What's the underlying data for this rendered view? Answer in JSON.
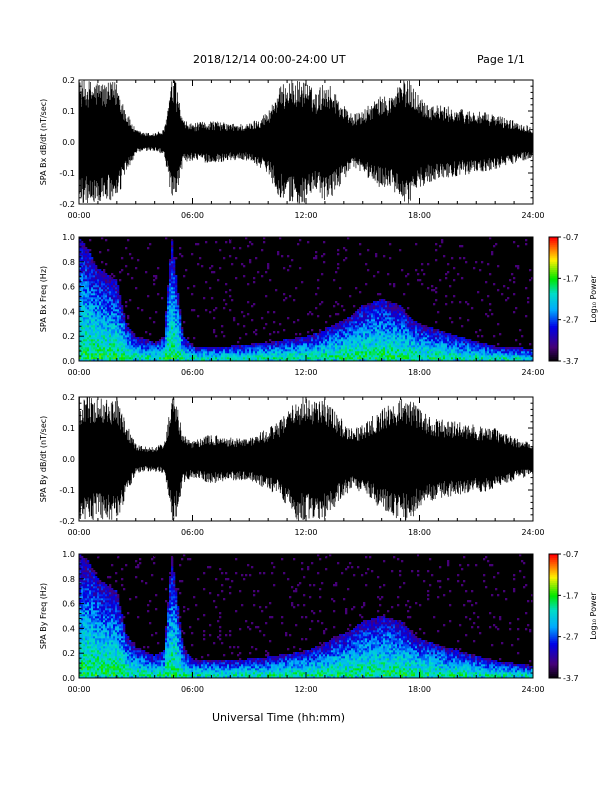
{
  "header": {
    "title": "2018/12/14   00:00-24:00 UT",
    "page": "Page 1/1"
  },
  "footer": {
    "xlabel": "Universal Time (hh:mm)"
  },
  "time_ticks": [
    "00:00",
    "06:00",
    "12:00",
    "18:00",
    "24:00"
  ],
  "colorbar": {
    "label": "Log₁₀ Power",
    "ticks": [
      "-0.7",
      "-1.7",
      "-2.7",
      "-3.7"
    ],
    "range": [
      -3.7,
      -0.7
    ]
  },
  "chart_data": [
    {
      "type": "line",
      "name": "bx-waveform",
      "ylabel": "SPA Bx dB/dt (nT/sec)",
      "xlim": [
        0,
        24
      ],
      "ylim": [
        -0.2,
        0.2
      ],
      "yticks": [
        "0.2",
        "0.1",
        "0.0",
        "-0.1",
        "-0.2"
      ],
      "x_unit": "hours UT",
      "envelope": {
        "hours": [
          0,
          0.1,
          0.5,
          1.0,
          1.5,
          2.0,
          2.5,
          3.0,
          3.5,
          4.0,
          4.5,
          4.9,
          5.1,
          5.5,
          6.0,
          7.0,
          8.0,
          9.0,
          10.0,
          10.5,
          11.0,
          11.5,
          12.0,
          12.5,
          13.0,
          13.5,
          14.0,
          14.5,
          15.0,
          15.5,
          16.0,
          16.5,
          17.0,
          17.5,
          18.0,
          18.5,
          19.0,
          20.0,
          21.0,
          22.0,
          23.0,
          24.0
        ],
        "amplitude": [
          0.2,
          0.2,
          0.2,
          0.2,
          0.19,
          0.2,
          0.1,
          0.04,
          0.03,
          0.03,
          0.04,
          0.2,
          0.2,
          0.07,
          0.06,
          0.07,
          0.06,
          0.06,
          0.1,
          0.17,
          0.2,
          0.2,
          0.2,
          0.16,
          0.2,
          0.17,
          0.12,
          0.09,
          0.1,
          0.13,
          0.15,
          0.15,
          0.2,
          0.2,
          0.15,
          0.13,
          0.12,
          0.11,
          0.1,
          0.09,
          0.07,
          0.05
        ]
      }
    },
    {
      "type": "heatmap",
      "name": "bx-spectrogram",
      "ylabel": "SPA Bx Freq (Hz)",
      "xlim": [
        0,
        24
      ],
      "ylim": [
        0,
        1.0
      ],
      "yticks": [
        "1.0",
        "0.8",
        "0.6",
        "0.4",
        "0.2",
        "0.0"
      ],
      "z_range": [
        -3.7,
        -0.7
      ],
      "activity": {
        "hours": [
          0,
          0.5,
          1.0,
          1.5,
          2.0,
          2.5,
          3.0,
          4.0,
          4.5,
          4.9,
          5.5,
          6.0,
          8.0,
          10.0,
          12.0,
          13.0,
          13.5,
          14.0,
          14.5,
          15.0,
          16.0,
          17.0,
          17.5,
          18.0,
          19.0,
          20.0,
          22.0,
          24.0
        ],
        "top_freq": [
          1.0,
          0.9,
          0.75,
          0.7,
          0.65,
          0.3,
          0.2,
          0.15,
          0.2,
          1.0,
          0.2,
          0.12,
          0.12,
          0.15,
          0.2,
          0.25,
          0.3,
          0.33,
          0.38,
          0.45,
          0.5,
          0.45,
          0.35,
          0.3,
          0.25,
          0.2,
          0.12,
          0.1
        ]
      }
    },
    {
      "type": "line",
      "name": "by-waveform",
      "ylabel": "SPA By dB/dt (nT/sec)",
      "xlim": [
        0,
        24
      ],
      "ylim": [
        -0.2,
        0.2
      ],
      "yticks": [
        "0.2",
        "0.1",
        "0.0",
        "-0.1",
        "-0.2"
      ],
      "x_unit": "hours UT",
      "envelope": {
        "hours": [
          0,
          0.1,
          0.5,
          1.0,
          1.5,
          2.0,
          2.5,
          3.0,
          3.5,
          4.0,
          4.5,
          4.9,
          5.1,
          5.5,
          6.0,
          7.0,
          8.0,
          9.0,
          10.0,
          10.5,
          11.0,
          11.5,
          12.0,
          12.5,
          13.0,
          13.5,
          14.0,
          14.5,
          15.0,
          15.5,
          16.0,
          16.5,
          17.0,
          17.5,
          18.0,
          18.5,
          19.0,
          20.0,
          21.0,
          22.0,
          23.0,
          24.0
        ],
        "amplitude": [
          0.2,
          0.2,
          0.2,
          0.2,
          0.2,
          0.2,
          0.12,
          0.05,
          0.04,
          0.04,
          0.05,
          0.2,
          0.2,
          0.08,
          0.06,
          0.08,
          0.07,
          0.07,
          0.1,
          0.12,
          0.15,
          0.2,
          0.2,
          0.2,
          0.2,
          0.16,
          0.12,
          0.1,
          0.11,
          0.14,
          0.16,
          0.18,
          0.2,
          0.2,
          0.16,
          0.14,
          0.13,
          0.12,
          0.11,
          0.1,
          0.07,
          0.05
        ]
      }
    },
    {
      "type": "heatmap",
      "name": "by-spectrogram",
      "ylabel": "SPA By Freq (Hz)",
      "xlim": [
        0,
        24
      ],
      "ylim": [
        0,
        1.0
      ],
      "yticks": [
        "1.0",
        "0.8",
        "0.6",
        "0.4",
        "0.2",
        "0.0"
      ],
      "z_range": [
        -3.7,
        -0.7
      ],
      "activity": {
        "hours": [
          0,
          0.5,
          1.0,
          1.5,
          2.0,
          2.5,
          3.0,
          4.0,
          4.5,
          4.9,
          5.5,
          6.0,
          8.0,
          10.0,
          12.0,
          13.0,
          13.5,
          14.0,
          14.5,
          15.0,
          16.0,
          17.0,
          17.5,
          18.0,
          19.0,
          20.0,
          22.0,
          24.0
        ],
        "top_freq": [
          1.0,
          0.95,
          0.8,
          0.75,
          0.7,
          0.35,
          0.25,
          0.18,
          0.22,
          1.0,
          0.25,
          0.15,
          0.14,
          0.17,
          0.22,
          0.28,
          0.33,
          0.36,
          0.4,
          0.46,
          0.5,
          0.46,
          0.38,
          0.32,
          0.27,
          0.22,
          0.14,
          0.1
        ]
      }
    }
  ]
}
